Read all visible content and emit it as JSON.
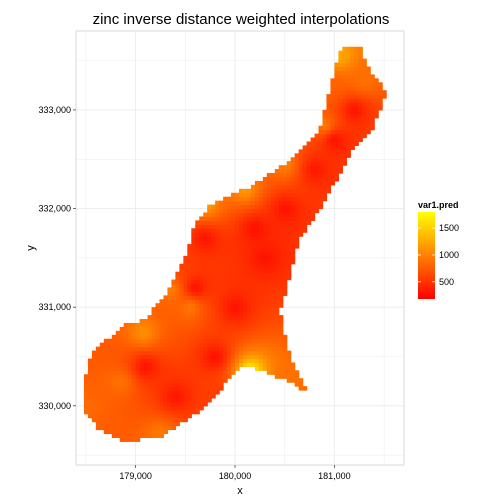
{
  "chart_data": {
    "type": "heatmap",
    "title": "zinc inverse distance weighted interpolations",
    "xlabel": "x",
    "ylabel": "y",
    "xlim": [
      178400,
      181700
    ],
    "ylim": [
      329400,
      333800
    ],
    "x_ticks": [
      179000,
      180000,
      181000
    ],
    "x_tick_labels": [
      "179,000",
      "180,000",
      "181,000"
    ],
    "y_ticks": [
      330000,
      331000,
      332000,
      333000
    ],
    "y_tick_labels": [
      "330,000",
      "331,000",
      "332,000",
      "333,000"
    ],
    "grid": true,
    "panel_background": "#ffffff",
    "grid_color": "#ebebeb",
    "legend": {
      "title": "var1.pred",
      "placement": "right",
      "breaks": [
        500,
        1000,
        1500
      ],
      "break_labels": [
        "500",
        "1000",
        "1500"
      ],
      "min": 180,
      "max": 1800,
      "low_color": "#ff0000",
      "high_color": "#ffff00"
    },
    "region_polygon": [
      [
        178460,
        330150
      ],
      [
        178560,
        330550
      ],
      [
        178900,
        330820
      ],
      [
        179100,
        330880
      ],
      [
        179300,
        331130
      ],
      [
        179510,
        331550
      ],
      [
        179600,
        331850
      ],
      [
        179760,
        332050
      ],
      [
        180150,
        332220
      ],
      [
        180500,
        332450
      ],
      [
        180860,
        332820
      ],
      [
        180980,
        333330
      ],
      [
        181080,
        333660
      ],
      [
        181250,
        333650
      ],
      [
        181360,
        333380
      ],
      [
        181530,
        333180
      ],
      [
        181380,
        332800
      ],
      [
        181180,
        332580
      ],
      [
        180880,
        332050
      ],
      [
        180650,
        331700
      ],
      [
        180450,
        330950
      ],
      [
        180560,
        330480
      ],
      [
        180740,
        330120
      ],
      [
        180560,
        330250
      ],
      [
        180080,
        330420
      ],
      [
        179680,
        329980
      ],
      [
        179270,
        329700
      ],
      [
        178880,
        329630
      ],
      [
        178630,
        329760
      ],
      [
        178480,
        329950
      ]
    ],
    "background_value": 430,
    "hotspots": [
      {
        "x": 180150,
        "y": 330350,
        "value": 1800
      },
      {
        "x": 179080,
        "y": 330750,
        "value": 1100
      },
      {
        "x": 178850,
        "y": 330250,
        "value": 900
      },
      {
        "x": 179250,
        "y": 329720,
        "value": 950
      },
      {
        "x": 178500,
        "y": 330000,
        "value": 850
      },
      {
        "x": 179350,
        "y": 331180,
        "value": 1000
      },
      {
        "x": 179550,
        "y": 331000,
        "value": 950
      },
      {
        "x": 179300,
        "y": 331550,
        "value": 800
      },
      {
        "x": 179700,
        "y": 332050,
        "value": 1200
      },
      {
        "x": 180100,
        "y": 332200,
        "value": 1150
      },
      {
        "x": 180500,
        "y": 332450,
        "value": 1000
      },
      {
        "x": 180900,
        "y": 332850,
        "value": 950
      },
      {
        "x": 181050,
        "y": 333550,
        "value": 1250
      },
      {
        "x": 181300,
        "y": 333300,
        "value": 900
      },
      {
        "x": 180950,
        "y": 333250,
        "value": 800
      },
      {
        "x": 180500,
        "y": 330300,
        "value": 900
      }
    ],
    "sample_points": [
      {
        "x": 179300,
        "y": 331500,
        "value": 300
      },
      {
        "x": 179600,
        "y": 331200,
        "value": 280
      },
      {
        "x": 179100,
        "y": 330400,
        "value": 300
      },
      {
        "x": 179800,
        "y": 330500,
        "value": 280
      },
      {
        "x": 179400,
        "y": 330100,
        "value": 320
      },
      {
        "x": 180000,
        "y": 331000,
        "value": 300
      },
      {
        "x": 180300,
        "y": 331500,
        "value": 300
      },
      {
        "x": 180200,
        "y": 331800,
        "value": 280
      },
      {
        "x": 180500,
        "y": 332000,
        "value": 300
      },
      {
        "x": 180800,
        "y": 332400,
        "value": 320
      },
      {
        "x": 181000,
        "y": 332700,
        "value": 280
      },
      {
        "x": 181200,
        "y": 333000,
        "value": 300
      },
      {
        "x": 180000,
        "y": 330100,
        "value": 300
      },
      {
        "x": 179700,
        "y": 331700,
        "value": 300
      }
    ]
  }
}
